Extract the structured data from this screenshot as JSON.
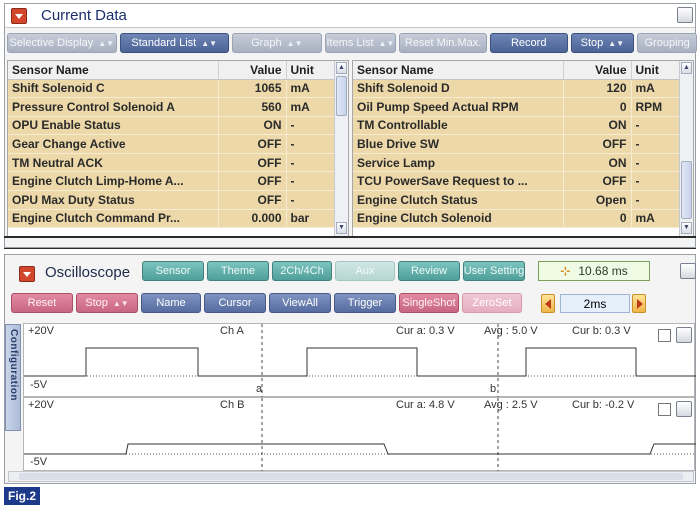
{
  "current_data": {
    "title": "Current Data",
    "toolbar": {
      "selective_display": "Selective Display",
      "standard_list": "Standard List",
      "graph": "Graph",
      "items_list": "Items List",
      "reset_min_max": "Reset Min.Max.",
      "record": "Record",
      "stop": "Stop",
      "grouping": "Grouping"
    },
    "headers": {
      "sensor_name": "Sensor Name",
      "value": "Value",
      "unit": "Unit"
    },
    "left_rows": [
      {
        "name": "Shift Solenoid C",
        "value": "1065",
        "unit": "mA"
      },
      {
        "name": "Pressure Control Solenoid A",
        "value": "560",
        "unit": "mA"
      },
      {
        "name": "OPU Enable Status",
        "value": "ON",
        "unit": "-"
      },
      {
        "name": "Gear Change Active",
        "value": "OFF",
        "unit": "-"
      },
      {
        "name": "TM Neutral ACK",
        "value": "OFF",
        "unit": "-"
      },
      {
        "name": "Engine Clutch Limp-Home A...",
        "value": "OFF",
        "unit": "-"
      },
      {
        "name": "OPU Max Duty Status",
        "value": "OFF",
        "unit": "-"
      },
      {
        "name": "Engine Clutch Command Pr...",
        "value": "0.000",
        "unit": "bar"
      }
    ],
    "right_rows": [
      {
        "name": "Shift Solenoid D",
        "value": "120",
        "unit": "mA"
      },
      {
        "name": "Oil Pump Speed Actual RPM",
        "value": "0",
        "unit": "RPM"
      },
      {
        "name": "TM Controllable",
        "value": "ON",
        "unit": "-"
      },
      {
        "name": "Blue Drive SW",
        "value": "OFF",
        "unit": "-"
      },
      {
        "name": "Service Lamp",
        "value": "ON",
        "unit": "-"
      },
      {
        "name": "TCU PowerSave Request to ...",
        "value": "OFF",
        "unit": "-"
      },
      {
        "name": "Engine Clutch Status",
        "value": "Open",
        "unit": "-"
      },
      {
        "name": "Engine Clutch Solenoid",
        "value": "0",
        "unit": "mA"
      }
    ]
  },
  "oscilloscope": {
    "title": "Oscilloscope",
    "toolbar1": {
      "sensor": "Sensor",
      "theme": "Theme",
      "ch_select": "2Ch/4Ch",
      "aux": "Aux",
      "review": "Review",
      "user_setting": "User Setting"
    },
    "sample_time": "10.68 ms",
    "toolbar2": {
      "reset": "Reset",
      "stop": "Stop",
      "name": "Name",
      "cursor": "Cursor",
      "view_all": "ViewAll",
      "trigger": "Trigger",
      "single_shot": "SingleShot",
      "zero_set": "ZeroSet"
    },
    "time_division": "2ms",
    "config_tab": "Configuration",
    "channels": [
      {
        "name": "Ch A",
        "top_label": "+20V",
        "bottom_label": "-5V",
        "cur_a": "Cur a: 0.3 V",
        "avg": "Avg : 5.0 V",
        "cur_b": "Cur b: 0.3 V",
        "cursor_a": "a",
        "cursor_b": "b"
      },
      {
        "name": "Ch B",
        "top_label": "+20V",
        "bottom_label": "-5V",
        "cur_a": "Cur a: 4.8 V",
        "avg": "Avg : 2.5 V",
        "cur_b": "Cur b: -0.2 V"
      }
    ]
  },
  "figure_label": "Fig.2"
}
